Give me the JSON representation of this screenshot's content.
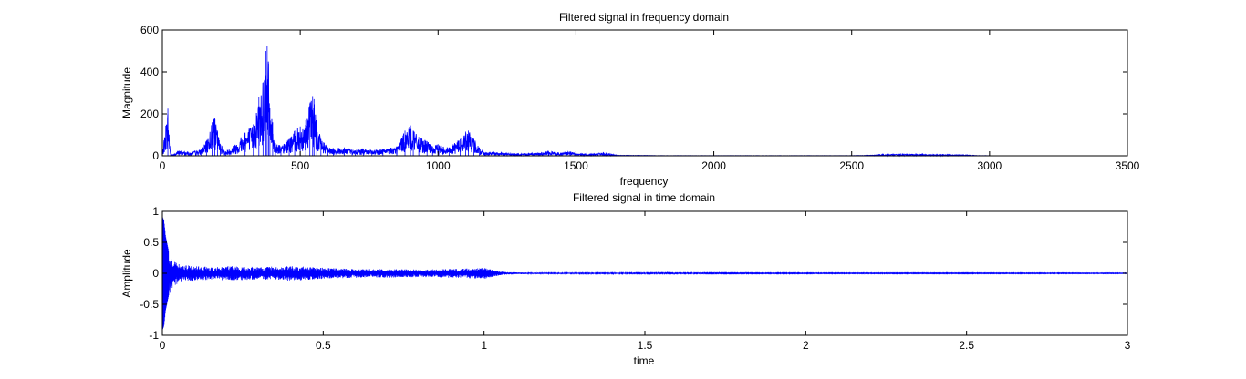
{
  "chart_data": [
    {
      "type": "line",
      "title": "Filtered signal in frequency domain",
      "xlabel": "frequency",
      "ylabel": "Magnitude",
      "xlim": [
        0,
        3500
      ],
      "ylim": [
        0,
        600
      ],
      "xticks": [
        "0",
        "500",
        "1000",
        "1500",
        "2000",
        "2500",
        "3000",
        "3500"
      ],
      "yticks": [
        "0",
        "200",
        "400",
        "600"
      ],
      "grid": false,
      "color": "#0000ff",
      "series": [
        {
          "x": [
            0,
            20,
            30,
            40,
            60,
            100,
            140,
            160,
            180,
            190,
            200,
            210,
            230,
            260,
            300,
            330,
            350,
            365,
            375,
            380,
            385,
            390,
            400,
            410,
            430,
            460,
            480,
            500,
            520,
            535,
            545,
            550,
            560,
            575,
            600,
            620,
            660,
            700,
            730,
            760,
            800,
            850,
            880,
            900,
            910,
            930,
            960,
            980,
            1000,
            1040,
            1080,
            1100,
            1110,
            1130,
            1150,
            1170,
            1200,
            1250,
            1300,
            1350,
            1400,
            1450,
            1480,
            1500,
            1550,
            1580,
            1600,
            1640,
            1650,
            1700,
            1750,
            1800,
            2000,
            2200,
            2500,
            2580,
            2600,
            2700,
            2800,
            2900,
            2960,
            3000
          ],
          "y": [
            5,
            225,
            5,
            5,
            25,
            15,
            30,
            70,
            160,
            180,
            120,
            55,
            20,
            50,
            110,
            150,
            280,
            350,
            500,
            525,
            440,
            230,
            160,
            60,
            45,
            80,
            120,
            140,
            170,
            250,
            285,
            270,
            160,
            80,
            40,
            35,
            40,
            25,
            35,
            25,
            30,
            45,
            120,
            145,
            120,
            90,
            70,
            45,
            55,
            40,
            80,
            115,
            120,
            80,
            40,
            15,
            18,
            12,
            10,
            12,
            20,
            15,
            20,
            10,
            8,
            12,
            15,
            5,
            3,
            2,
            2,
            1,
            1,
            1,
            1,
            3,
            6,
            8,
            6,
            5,
            1,
            1
          ]
        }
      ]
    },
    {
      "type": "line",
      "title": "Filtered signal in time domain",
      "xlabel": "time",
      "ylabel": "Amplitude",
      "xlim": [
        0,
        3
      ],
      "ylim": [
        -1,
        1
      ],
      "xticks": [
        "0",
        "0.5",
        "1",
        "1.5",
        "2",
        "2.5",
        "3"
      ],
      "yticks": [
        "-1",
        "-0.5",
        "0",
        "0.5",
        "1"
      ],
      "grid": false,
      "color": "#0000ff",
      "series": [
        {
          "t": [
            0,
            0.005,
            0.01,
            0.02,
            0.03,
            0.05,
            0.1,
            0.15,
            0.2,
            0.3,
            0.4,
            0.5,
            0.6,
            0.7,
            0.8,
            0.9,
            1.0,
            1.05,
            1.1,
            1.2,
            1.5,
            2.0,
            2.5,
            3.0
          ],
          "envelope": [
            0.92,
            0.85,
            0.6,
            0.35,
            0.25,
            0.15,
            0.12,
            0.1,
            0.12,
            0.1,
            0.12,
            0.09,
            0.07,
            0.07,
            0.06,
            0.07,
            0.09,
            0.03,
            0.015,
            0.01,
            0.008,
            0.006,
            0.006,
            0.005
          ]
        }
      ]
    }
  ]
}
